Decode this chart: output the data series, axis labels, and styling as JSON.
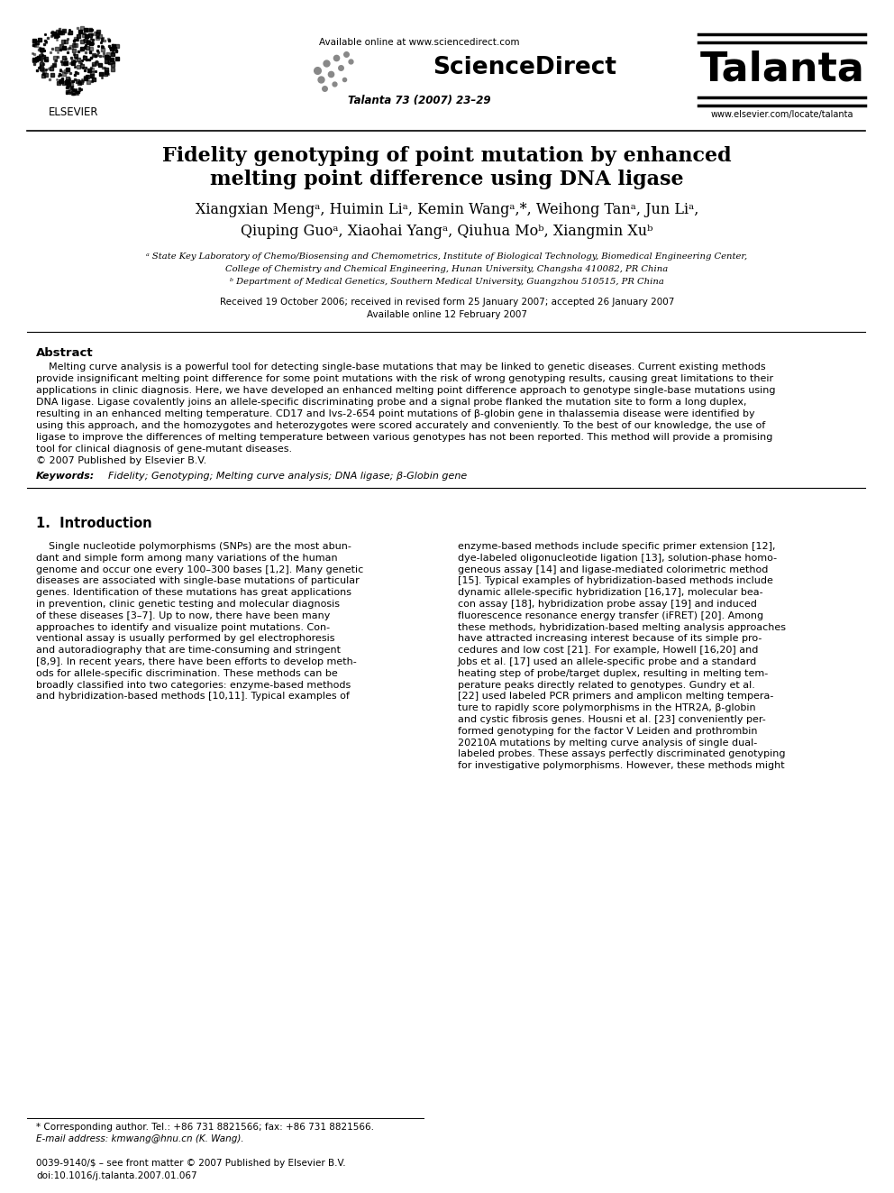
{
  "bg_color": "#ffffff",
  "title_line1": "Fidelity genotyping of point mutation by enhanced",
  "title_line2": "melting point difference using DNA ligase",
  "authors_line1": "Xiangxian Mengᵃ, Huimin Liᵃ, Kemin Wangᵃ,*, Weihong Tanᵃ, Jun Liᵃ,",
  "authors_line2": "Qiuping Guoᵃ, Xiaohai Yangᵃ, Qiuhua Moᵇ, Xiangmin Xuᵇ",
  "affil_a": "ᵃ State Key Laboratory of Chemo/Biosensing and Chemometrics, Institute of Biological Technology, Biomedical Engineering Center,",
  "affil_a2": "College of Chemistry and Chemical Engineering, Hunan University, Changsha 410082, PR China",
  "affil_b": "ᵇ Department of Medical Genetics, Southern Medical University, Guangzhou 510515, PR China",
  "received": "Received 19 October 2006; received in revised form 25 January 2007; accepted 26 January 2007",
  "available": "Available online 12 February 2007",
  "journal_info": "Talanta 73 (2007) 23–29",
  "available_online": "Available online at www.sciencedirect.com",
  "sciencedirect": "ScienceDirect",
  "talanta": "Talanta",
  "elsevier": "ELSEVIER",
  "website": "www.elsevier.com/locate/talanta",
  "abstract_title": "Abstract",
  "copyright": "© 2007 Published by Elsevier B.V.",
  "keywords_label": "Keywords:",
  "keywords_text": "  Fidelity; Genotyping; Melting curve analysis; DNA ligase; β-Globin gene",
  "section1_title": "1.  Introduction",
  "footnote_star": "* Corresponding author. Tel.: +86 731 8821566; fax: +86 731 8821566.",
  "footnote_email": "E-mail address: kmwang@hnu.cn (K. Wang).",
  "bottom_issn": "0039-9140/$ – see front matter © 2007 Published by Elsevier B.V.",
  "bottom_doi": "doi:10.1016/j.talanta.2007.01.067",
  "abstract_lines": [
    "    Melting curve analysis is a powerful tool for detecting single-base mutations that may be linked to genetic diseases. Current existing methods",
    "provide insignificant melting point difference for some point mutations with the risk of wrong genotyping results, causing great limitations to their",
    "applications in clinic diagnosis. Here, we have developed an enhanced melting point difference approach to genotype single-base mutations using",
    "DNA ligase. Ligase covalently joins an allele-specific discriminating probe and a signal probe flanked the mutation site to form a long duplex,",
    "resulting in an enhanced melting temperature. CD17 and Ivs-2-654 point mutations of β-globin gene in thalassemia disease were identified by",
    "using this approach, and the homozygotes and heterozygotes were scored accurately and conveniently. To the best of our knowledge, the use of",
    "ligase to improve the differences of melting temperature between various genotypes has not been reported. This method will provide a promising",
    "tool for clinical diagnosis of gene-mutant diseases."
  ],
  "left_col": [
    "    Single nucleotide polymorphisms (SNPs) are the most abun-",
    "dant and simple form among many variations of the human",
    "genome and occur one every 100–300 bases [1,2]. Many genetic",
    "diseases are associated with single-base mutations of particular",
    "genes. Identification of these mutations has great applications",
    "in prevention, clinic genetic testing and molecular diagnosis",
    "of these diseases [3–7]. Up to now, there have been many",
    "approaches to identify and visualize point mutations. Con-",
    "ventional assay is usually performed by gel electrophoresis",
    "and autoradiography that are time-consuming and stringent",
    "[8,9]. In recent years, there have been efforts to develop meth-",
    "ods for allele-specific discrimination. These methods can be",
    "broadly classified into two categories: enzyme-based methods",
    "and hybridization-based methods [10,11]. Typical examples of"
  ],
  "right_col": [
    "enzyme-based methods include specific primer extension [12],",
    "dye-labeled oligonucleotide ligation [13], solution-phase homo-",
    "geneous assay [14] and ligase-mediated colorimetric method",
    "[15]. Typical examples of hybridization-based methods include",
    "dynamic allele-specific hybridization [16,17], molecular bea-",
    "con assay [18], hybridization probe assay [19] and induced",
    "fluorescence resonance energy transfer (iFRET) [20]. Among",
    "these methods, hybridization-based melting analysis approaches",
    "have attracted increasing interest because of its simple pro-",
    "cedures and low cost [21]. For example, Howell [16,20] and",
    "Jobs et al. [17] used an allele-specific probe and a standard",
    "heating step of probe/target duplex, resulting in melting tem-",
    "perature peaks directly related to genotypes. Gundry et al.",
    "[22] used labeled PCR primers and amplicon melting tempera-",
    "ture to rapidly score polymorphisms in the HTR2A, β-globin",
    "and cystic fibrosis genes. Housni et al. [23] conveniently per-",
    "formed genotyping for the factor V Leiden and prothrombin",
    "20210A mutations by melting curve analysis of single dual-",
    "labeled probes. These assays perfectly discriminated genotyping",
    "for investigative polymorphisms. However, these methods might"
  ]
}
